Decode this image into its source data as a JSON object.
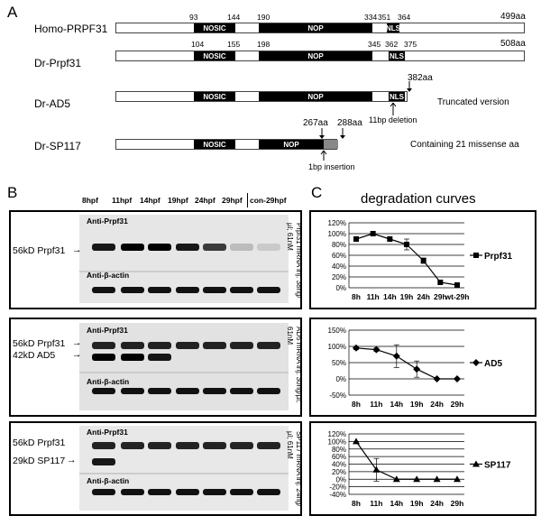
{
  "panel_a": {
    "letter": "A",
    "proteins": [
      {
        "name": "Homo-PRPF31",
        "length": "499aa",
        "nums": [
          "93",
          "144",
          "190",
          "334",
          "351",
          "364"
        ],
        "domains": [
          "NOSIC",
          "NOP",
          "NLS"
        ],
        "note": ""
      },
      {
        "name": "Dr-Prpf31",
        "length": "508aa",
        "nums": [
          "104",
          "155",
          "198",
          "345",
          "362",
          "375"
        ],
        "domains": [
          "NOSIC",
          "NOP",
          "NLS"
        ],
        "note": ""
      },
      {
        "name": "Dr-AD5",
        "length": "",
        "nums": [
          "382aa"
        ],
        "domains": [
          "NOSIC",
          "NOP",
          "NLS"
        ],
        "note": "Truncated version",
        "annotation": "11bp deletion"
      },
      {
        "name": "Dr-SP117",
        "length": "",
        "nums": [
          "267aa",
          "288aa"
        ],
        "domains": [
          "NOSIC",
          "NOP"
        ],
        "note": "Containing 21 missense aa",
        "annotation": "1bp insertion"
      }
    ]
  },
  "panel_b": {
    "letter": "B",
    "lanes": [
      "8hpf",
      "11hpf",
      "14hpf",
      "19hpf",
      "24hpf",
      "29hpf",
      "con-29hpf"
    ],
    "blots": [
      {
        "antibody_top": "Anti-Prpf31",
        "antibody_bottom": "Anti-β-actin",
        "bands": [
          "56kD Prpf31"
        ],
        "side": "Prpf31 mRNA inj: 38ng/µl; 61nM",
        "intensity": [
          0.9,
          1.0,
          1.0,
          0.9,
          0.75,
          0.18,
          0.12
        ]
      },
      {
        "antibody_top": "Anti-Prpf31",
        "antibody_bottom": "Anti-β-actin",
        "bands": [
          "56kD Prpf31",
          "42kD AD5"
        ],
        "side": "AD5 mRNA inj: 30ng/µl; 61nM",
        "intensity": [
          1.0,
          0.95,
          0.7,
          0.35,
          0.1,
          0.05,
          0.0
        ]
      },
      {
        "antibody_top": "Anti-Prpf31",
        "antibody_bottom": "Anti-β-actin",
        "bands": [
          "56kD Prpf31",
          "29kD SP117"
        ],
        "side": "SP117 mRNA inj: 24ng/µl; 61nM",
        "intensity": [
          1.0,
          0.25,
          0.0,
          0.0,
          0.0,
          0.0,
          0.0
        ]
      }
    ]
  },
  "panel_c": {
    "letter": "C",
    "title": "degradation curves"
  },
  "chart_data": [
    {
      "type": "line",
      "series_label": "Prpf31",
      "categories": [
        "8h",
        "11h",
        "14h",
        "19h",
        "24h",
        "29h",
        "wt-29h"
      ],
      "values": [
        90,
        100,
        90,
        80,
        50,
        10,
        5
      ],
      "errors": [
        0,
        0,
        0,
        10,
        5,
        0,
        0
      ],
      "ylim": [
        0,
        120
      ],
      "yticks": [
        "0%",
        "20%",
        "40%",
        "60%",
        "80%",
        "100%",
        "120%"
      ],
      "marker": "square"
    },
    {
      "type": "line",
      "series_label": "AD5",
      "categories": [
        "8h",
        "11h",
        "14h",
        "19h",
        "24h",
        "29h"
      ],
      "values": [
        95,
        90,
        70,
        30,
        0,
        0
      ],
      "errors": [
        5,
        5,
        35,
        25,
        0,
        0
      ],
      "ylim": [
        -50,
        150
      ],
      "yticks": [
        "-50%",
        "0%",
        "50%",
        "100%",
        "150%"
      ],
      "marker": "diamond"
    },
    {
      "type": "line",
      "series_label": "SP117",
      "categories": [
        "8h",
        "11h",
        "14h",
        "19h",
        "24h",
        "29h"
      ],
      "values": [
        100,
        25,
        0,
        0,
        0,
        0
      ],
      "errors": [
        0,
        30,
        0,
        0,
        0,
        0
      ],
      "ylim": [
        -40,
        120
      ],
      "yticks": [
        "-40%",
        "-20%",
        "0%",
        "20%",
        "40%",
        "60%",
        "80%",
        "100%",
        "120%"
      ],
      "marker": "triangle"
    }
  ]
}
